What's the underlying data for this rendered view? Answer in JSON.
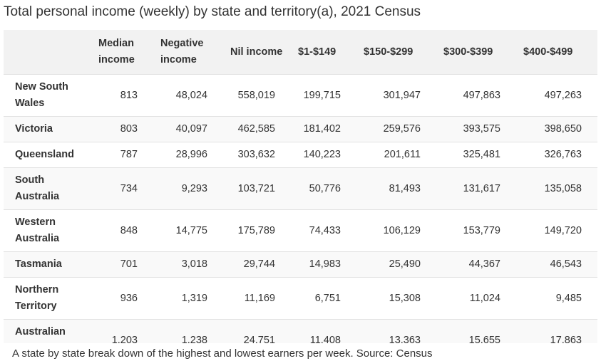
{
  "title": "Total personal income (weekly) by state and territory(a), 2021 Census",
  "table": {
    "header": [
      "Median income",
      "Negative income",
      "Nil income",
      "$1-$149",
      "$150-$299",
      "$300-$399",
      "$400-$499"
    ],
    "rows": [
      [
        "New South Wales",
        "813",
        "48,024",
        "558,019",
        "199,715",
        "301,947",
        "497,863",
        "497,263"
      ],
      [
        "Victoria",
        "803",
        "40,097",
        "462,585",
        "181,402",
        "259,576",
        "393,575",
        "398,650"
      ],
      [
        "Queensland",
        "787",
        "28,996",
        "303,632",
        "140,223",
        "201,611",
        "325,481",
        "326,763"
      ],
      [
        "South Australia",
        "734",
        "9,293",
        "103,721",
        "50,776",
        "81,493",
        "131,617",
        "135,058"
      ],
      [
        "Western Australia",
        "848",
        "14,775",
        "175,789",
        "74,433",
        "106,129",
        "153,779",
        "149,720"
      ],
      [
        "Tasmania",
        "701",
        "3,018",
        "29,744",
        "14,983",
        "25,490",
        "44,367",
        "46,543"
      ],
      [
        "Northern Territory",
        "936",
        "1,319",
        "11,169",
        "6,751",
        "15,308",
        "11,024",
        "9,485"
      ],
      [
        "Australian Capital",
        "1,203",
        "1,238",
        "24,751",
        "11,408",
        "13,363",
        "15,655",
        "17,863"
      ]
    ]
  },
  "caption": "A state by state break down of the highest and lowest earners per week. Source: Census"
}
